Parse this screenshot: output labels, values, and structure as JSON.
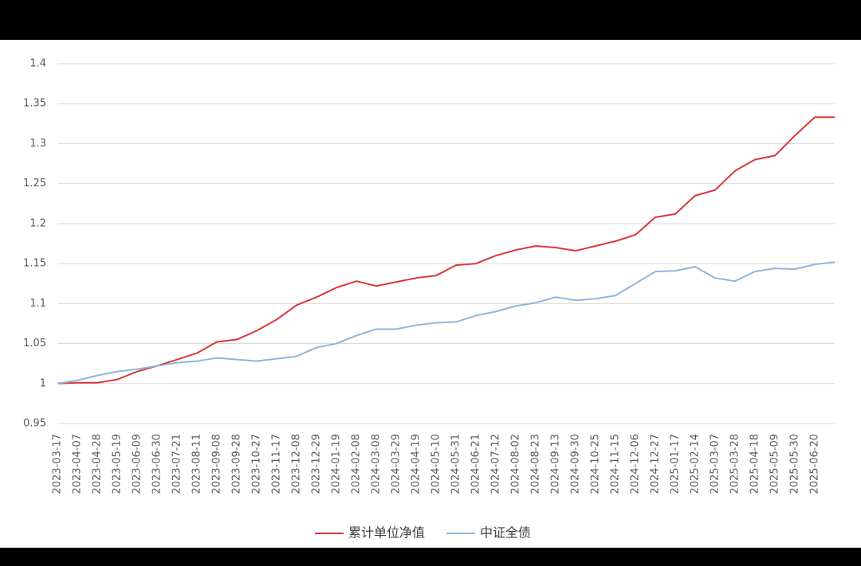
{
  "chart_data": {
    "type": "line",
    "categories": [
      "2023-03-17",
      "2023-04-07",
      "2023-04-28",
      "2023-05-19",
      "2023-06-09",
      "2023-06-30",
      "2023-07-21",
      "2023-08-11",
      "2023-09-08",
      "2023-09-28",
      "2023-10-27",
      "2023-11-17",
      "2023-12-08",
      "2023-12-29",
      "2024-01-19",
      "2024-02-08",
      "2024-03-08",
      "2024-03-29",
      "2024-04-19",
      "2024-05-10",
      "2024-05-31",
      "2024-06-21",
      "2024-07-12",
      "2024-08-02",
      "2024-08-23",
      "2024-09-13",
      "2024-09-30",
      "2024-10-25",
      "2024-11-15",
      "2024-12-06",
      "2024-12-27",
      "2025-01-17",
      "2025-02-14",
      "2025-03-07",
      "2025-03-28",
      "2025-04-18",
      "2025-05-09",
      "2025-05-30",
      "2025-06-20",
      null
    ],
    "series": [
      {
        "name": "累计单位净值",
        "color": "#d9373a",
        "values": [
          1.0,
          1.001,
          1.001,
          1.005,
          1.015,
          1.022,
          1.03,
          1.038,
          1.052,
          1.055,
          1.066,
          1.08,
          1.098,
          1.108,
          1.12,
          1.128,
          1.122,
          1.127,
          1.132,
          1.135,
          1.148,
          1.15,
          1.16,
          1.167,
          1.172,
          1.17,
          1.166,
          1.172,
          1.178,
          1.186,
          1.208,
          1.212,
          1.235,
          1.242,
          1.266,
          1.28,
          1.285,
          1.31,
          1.333,
          1.333
        ]
      },
      {
        "name": "中证全债",
        "color": "#8db7dc",
        "values": [
          1.0,
          1.004,
          1.01,
          1.015,
          1.018,
          1.022,
          1.026,
          1.028,
          1.032,
          1.03,
          1.028,
          1.031,
          1.034,
          1.045,
          1.05,
          1.06,
          1.068,
          1.068,
          1.073,
          1.076,
          1.077,
          1.085,
          1.09,
          1.097,
          1.101,
          1.108,
          1.104,
          1.106,
          1.11,
          1.125,
          1.14,
          1.141,
          1.146,
          1.132,
          1.128,
          1.14,
          1.144,
          1.143,
          1.149,
          1.152
        ]
      }
    ],
    "ylim": [
      0.95,
      1.4
    ],
    "yticks": [
      0.95,
      1,
      1.05,
      1.1,
      1.15,
      1.2,
      1.25,
      1.3,
      1.35,
      1.4
    ],
    "grid": true,
    "legend": "bottom"
  }
}
